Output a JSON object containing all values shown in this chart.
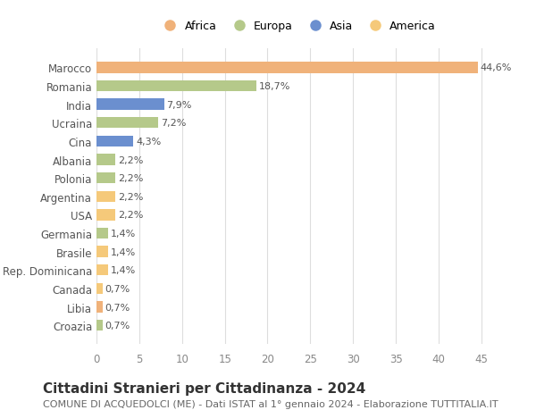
{
  "categories": [
    "Marocco",
    "Romania",
    "India",
    "Ucraina",
    "Cina",
    "Albania",
    "Polonia",
    "Argentina",
    "USA",
    "Germania",
    "Brasile",
    "Rep. Dominicana",
    "Canada",
    "Libia",
    "Croazia"
  ],
  "values": [
    44.6,
    18.7,
    7.9,
    7.2,
    4.3,
    2.2,
    2.2,
    2.2,
    2.2,
    1.4,
    1.4,
    1.4,
    0.7,
    0.7,
    0.7
  ],
  "labels": [
    "44,6%",
    "18,7%",
    "7,9%",
    "7,2%",
    "4,3%",
    "2,2%",
    "2,2%",
    "2,2%",
    "2,2%",
    "1,4%",
    "1,4%",
    "1,4%",
    "0,7%",
    "0,7%",
    "0,7%"
  ],
  "colors": [
    "#f0b27a",
    "#b5c98a",
    "#6b8fcf",
    "#b5c98a",
    "#6b8fcf",
    "#b5c98a",
    "#b5c98a",
    "#f5c97a",
    "#f5c97a",
    "#b5c98a",
    "#f5c97a",
    "#f5c97a",
    "#f5c97a",
    "#f0b27a",
    "#b5c98a"
  ],
  "legend_labels": [
    "Africa",
    "Europa",
    "Asia",
    "America"
  ],
  "legend_colors": [
    "#f0b27a",
    "#b5c98a",
    "#6b8fcf",
    "#f5c97a"
  ],
  "xlim": [
    0,
    47
  ],
  "xticks": [
    0,
    5,
    10,
    15,
    20,
    25,
    30,
    35,
    40,
    45
  ],
  "title": "Cittadini Stranieri per Cittadinanza - 2024",
  "subtitle": "COMUNE DI ACQUEDOLCI (ME) - Dati ISTAT al 1° gennaio 2024 - Elaborazione TUTTITALIA.IT",
  "background_color": "#ffffff",
  "grid_color": "#dddddd",
  "bar_height": 0.6,
  "label_fontsize": 8,
  "tick_label_fontsize": 8.5,
  "title_fontsize": 11,
  "subtitle_fontsize": 8
}
